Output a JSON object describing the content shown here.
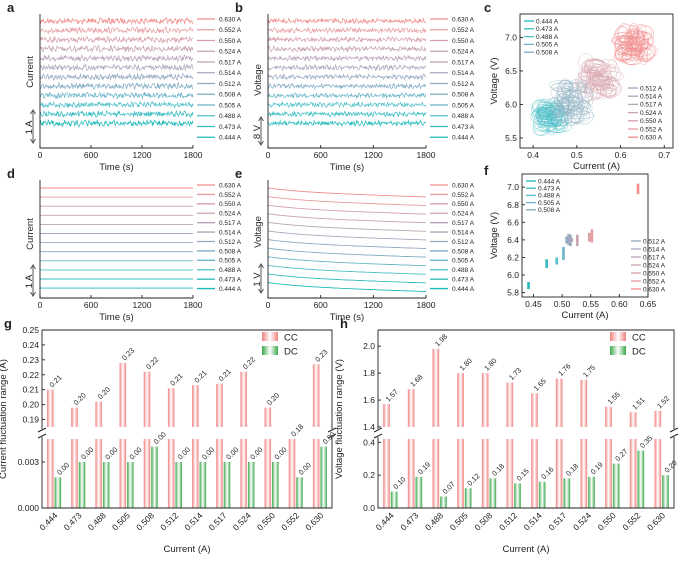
{
  "currents": [
    "0.444 A",
    "0.473 A",
    "0.488 A",
    "0.505 A",
    "0.508 A",
    "0.512 A",
    "0.514 A",
    "0.517 A",
    "0.524 A",
    "0.550 A",
    "0.552 A",
    "0.630 A"
  ],
  "series_colors": [
    "#1fb8b8",
    "#35bcc0",
    "#4fc0c8",
    "#6ab4c8",
    "#80acc4",
    "#94a8c0",
    "#a8a8bc",
    "#b8a4b8",
    "#c8a4b0",
    "#d8a0a8",
    "#e89ca0",
    "#f08c8c"
  ],
  "bar_colors": {
    "cc": "#f08080",
    "dc": "#3aa84a"
  },
  "chart_data": [
    {
      "panel": "a",
      "type": "line",
      "title": "",
      "xlabel": "Time (s)",
      "ylabel": "Current",
      "scale_bar": "1 A",
      "xticks": [
        "0",
        "600",
        "1200",
        "1800"
      ],
      "xlim": [
        0,
        1800
      ],
      "series": [
        "0.630 A",
        "0.552 A",
        "0.550 A",
        "0.524 A",
        "0.517 A",
        "0.514 A",
        "0.512 A",
        "0.508 A",
        "0.505 A",
        "0.488 A",
        "0.473 A",
        "0.444 A"
      ],
      "pattern": "CC, stacked noisy traces"
    },
    {
      "panel": "b",
      "type": "line",
      "title": "",
      "xlabel": "Time (s)",
      "ylabel": "Voltage",
      "scale_bar": "8 V",
      "xticks": [
        "0",
        "600",
        "1200",
        "1800"
      ],
      "xlim": [
        0,
        1800
      ],
      "series": [
        "0.630 A",
        "0.552 A",
        "0.550 A",
        "0.524 A",
        "0.517 A",
        "0.514 A",
        "0.512 A",
        "0.508 A",
        "0.505 A",
        "0.488 A",
        "0.473 A",
        "0.444 A"
      ],
      "pattern": "CC, stacked noisy traces"
    },
    {
      "panel": "c",
      "type": "scatter",
      "title": "",
      "xlabel": "Current (A)",
      "ylabel": "Voltage (V)",
      "xticks": [
        "0.4",
        "0.5",
        "0.6",
        "0.7"
      ],
      "yticks": [
        "5.5",
        "6.0",
        "6.5",
        "7.0"
      ],
      "xlim": [
        0.37,
        0.72
      ],
      "ylim": [
        5.35,
        7.35
      ],
      "legend_left": [
        "0.444 A",
        "0.473 A",
        "0.488 A",
        "0.505 A",
        "0.508 A"
      ],
      "legend_right": [
        "0.512 A",
        "0.514 A",
        "0.517 A",
        "0.524 A",
        "0.550 A",
        "0.552 A",
        "0.630 A"
      ],
      "clusters": [
        {
          "x": 0.44,
          "y": 5.8,
          "rx": 0.055,
          "ry": 0.45,
          "color": "#4fc0c8"
        },
        {
          "x": 0.49,
          "y": 6.05,
          "rx": 0.07,
          "ry": 0.55,
          "color": "#94b4c4"
        },
        {
          "x": 0.55,
          "y": 6.4,
          "rx": 0.07,
          "ry": 0.5,
          "color": "#d8a8b0"
        },
        {
          "x": 0.63,
          "y": 6.9,
          "rx": 0.065,
          "ry": 0.45,
          "color": "#f08c8c"
        }
      ]
    },
    {
      "panel": "d",
      "type": "line",
      "title": "",
      "xlabel": "Time (s)",
      "ylabel": "Current",
      "scale_bar": "1 A",
      "xticks": [
        "0",
        "600",
        "1200",
        "1800"
      ],
      "xlim": [
        0,
        1800
      ],
      "series": [
        "0.630 A",
        "0.552 A",
        "0.550 A",
        "0.524 A",
        "0.517 A",
        "0.514 A",
        "0.512 A",
        "0.508 A",
        "0.505 A",
        "0.488 A",
        "0.473 A",
        "0.444 A"
      ],
      "pattern": "DC, flat stacked traces"
    },
    {
      "panel": "e",
      "type": "line",
      "title": "",
      "xlabel": "Time (s)",
      "ylabel": "Voltage",
      "scale_bar": "1 V",
      "xticks": [
        "0",
        "600",
        "1200",
        "1800"
      ],
      "xlim": [
        0,
        1800
      ],
      "series": [
        "0.630 A",
        "0.552 A",
        "0.550 A",
        "0.524 A",
        "0.517 A",
        "0.514 A",
        "0.512 A",
        "0.508 A",
        "0.505 A",
        "0.488 A",
        "0.473 A",
        "0.444 A"
      ],
      "pattern": "DC, slowly decaying traces"
    },
    {
      "panel": "f",
      "type": "scatter",
      "title": "",
      "xlabel": "Current (A)",
      "ylabel": "Voltage (V)",
      "xticks": [
        "0.45",
        "0.50",
        "0.55",
        "0.60",
        "0.65"
      ],
      "yticks": [
        "5.8",
        "6.0",
        "6.2",
        "6.4",
        "6.6",
        "6.8",
        "7.0"
      ],
      "xlim": [
        0.43,
        0.65
      ],
      "ylim": [
        5.75,
        7.15
      ],
      "legend_left": [
        "0.444 A",
        "0.473 A",
        "0.488 A",
        "0.505 A",
        "0.508 A"
      ],
      "legend_right": [
        "0.512 A",
        "0.514 A",
        "0.517 A",
        "0.524 A",
        "0.550 A",
        "0.552 A",
        "0.630 A"
      ],
      "points": [
        {
          "x": 0.444,
          "ylo": 5.84,
          "yhi": 5.92
        },
        {
          "x": 0.473,
          "ylo": 6.08,
          "yhi": 6.18
        },
        {
          "x": 0.488,
          "ylo": 6.12,
          "yhi": 6.2
        },
        {
          "x": 0.505,
          "ylo": 6.17,
          "yhi": 6.32
        },
        {
          "x": 0.508,
          "ylo": 6.36,
          "yhi": 6.44
        },
        {
          "x": 0.512,
          "ylo": 6.33,
          "yhi": 6.46
        },
        {
          "x": 0.514,
          "ylo": 6.34,
          "yhi": 6.47
        },
        {
          "x": 0.517,
          "ylo": 6.38,
          "yhi": 6.42
        },
        {
          "x": 0.524,
          "ylo": 6.33,
          "yhi": 6.46
        },
        {
          "x": 0.55,
          "ylo": 6.38,
          "yhi": 6.48
        },
        {
          "x": 0.552,
          "ylo": 6.37,
          "yhi": 6.52
        },
        {
          "x": 0.63,
          "ylo": 6.92,
          "yhi": 7.04
        }
      ]
    },
    {
      "panel": "g",
      "type": "bar",
      "title": "",
      "xlabel": "Current (A)",
      "ylabel": "Current fluctuation range (A)",
      "categories": [
        "0.444",
        "0.473",
        "0.488",
        "0.505",
        "0.508",
        "0.512",
        "0.514",
        "0.517",
        "0.524",
        "0.550",
        "0.552",
        "0.630"
      ],
      "series": [
        {
          "name": "CC",
          "values": [
            0.21,
            0.198,
            0.202,
            0.228,
            0.222,
            0.211,
            0.213,
            0.214,
            0.222,
            0.198,
            0.183,
            0.227
          ],
          "labels": [
            "0.21",
            "0.20",
            "0.20",
            "0.23",
            "0.22",
            "0.21",
            "0.21",
            "0.21",
            "0.22",
            "0.20",
            "0.18",
            "0.23"
          ]
        },
        {
          "name": "DC",
          "values": [
            0.002,
            0.003,
            0.003,
            0.003,
            0.004,
            0.003,
            0.003,
            0.003,
            0.003,
            0.003,
            0.002,
            0.004
          ],
          "labels": [
            "0.00",
            "0.00",
            "0.00",
            "0.00",
            "0.00",
            "0.00",
            "0.00",
            "0.00",
            "0.00",
            "0.00",
            "0.00",
            "0.00"
          ]
        }
      ],
      "yticks_upper": [
        "0.19",
        "0.20",
        "0.21",
        "0.22",
        "0.23",
        "0.24",
        "0.25"
      ],
      "yticks_lower": [
        "0.000",
        "0.003"
      ],
      "ylim_upper": [
        0.185,
        0.25
      ],
      "ylim_lower": [
        0,
        0.0045
      ]
    },
    {
      "panel": "h",
      "type": "bar",
      "title": "",
      "xlabel": "Current (A)",
      "ylabel": "Voltage fluctuation range (V)",
      "categories": [
        "0.444",
        "0.473",
        "0.488",
        "0.505",
        "0.508",
        "0.512",
        "0.514",
        "0.517",
        "0.524",
        "0.550",
        "0.552",
        "0.630"
      ],
      "series": [
        {
          "name": "CC",
          "values": [
            1.57,
            1.68,
            1.98,
            1.8,
            1.8,
            1.73,
            1.65,
            1.76,
            1.75,
            1.55,
            1.51,
            1.52
          ],
          "labels": [
            "1.57",
            "1.68",
            "1.98",
            "1.80",
            "1.80",
            "1.73",
            "1.65",
            "1.76",
            "1.75",
            "1.55",
            "1.51",
            "1.52"
          ]
        },
        {
          "name": "DC",
          "values": [
            0.1,
            0.19,
            0.07,
            0.12,
            0.18,
            0.15,
            0.16,
            0.18,
            0.19,
            0.27,
            0.35,
            0.2
          ],
          "labels": [
            "0.10",
            "0.19",
            "0.07",
            "0.12",
            "0.18",
            "0.15",
            "0.16",
            "0.18",
            "0.19",
            "0.27",
            "0.35",
            "0.20"
          ]
        }
      ],
      "yticks_upper": [
        "1.4",
        "1.6",
        "1.8",
        "2.0"
      ],
      "yticks_lower": [
        "0.0",
        "0.2",
        "0.4"
      ],
      "ylim_upper": [
        1.4,
        2.12
      ],
      "ylim_lower": [
        0,
        0.42
      ]
    }
  ]
}
